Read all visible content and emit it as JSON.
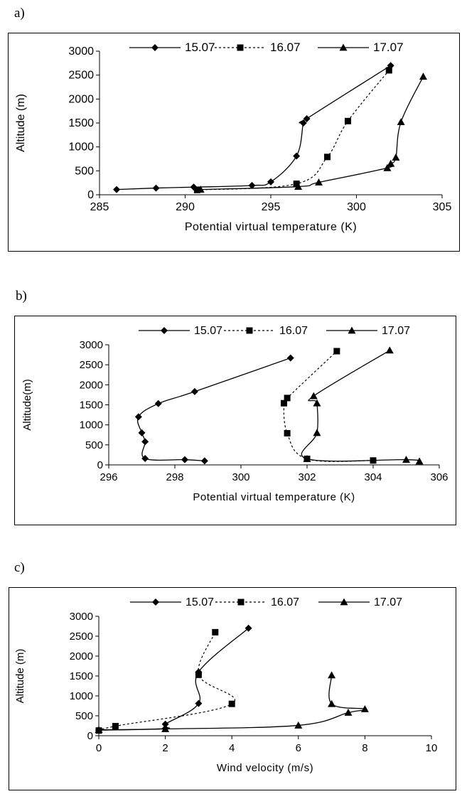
{
  "panels": [
    {
      "label": "a)"
    },
    {
      "label": "b)"
    },
    {
      "label": "c)"
    }
  ],
  "chart_data": [
    {
      "type": "line",
      "xlabel": "Potential virtual temperature (K)",
      "ylabel": "Altitude (m)",
      "xlim": [
        285,
        305
      ],
      "ylim": [
        0,
        3000
      ],
      "xticks": [
        285,
        290,
        295,
        300,
        305
      ],
      "yticks": [
        0,
        500,
        1000,
        1500,
        2000,
        2500,
        3000
      ],
      "legend": "top",
      "grid": false,
      "series": [
        {
          "name": "15.07",
          "marker": "diamond",
          "dash": "solid",
          "points": [
            [
              286,
              110
            ],
            [
              288.3,
              140
            ],
            [
              290.5,
              160
            ],
            [
              293.9,
              195
            ],
            [
              295,
              270
            ],
            [
              296.5,
              810
            ],
            [
              296.9,
              1500
            ],
            [
              297.1,
              1590
            ],
            [
              302,
              2700
            ]
          ]
        },
        {
          "name": "16.07",
          "marker": "square",
          "dash": "dotted",
          "points": [
            [
              290.7,
              100
            ],
            [
              296.5,
              230
            ],
            [
              298.3,
              790
            ],
            [
              299.5,
              1540
            ],
            [
              301.9,
              2600
            ]
          ]
        },
        {
          "name": "17.07",
          "marker": "triangle",
          "dash": "solid",
          "points": [
            [
              290.9,
              110
            ],
            [
              296.6,
              170
            ],
            [
              297.8,
              260
            ],
            [
              301.8,
              560
            ],
            [
              302,
              650
            ],
            [
              302.3,
              780
            ],
            [
              302.6,
              1520
            ],
            [
              303.9,
              2470
            ]
          ]
        }
      ]
    },
    {
      "type": "line",
      "xlabel": "Potential virtual temperature (K)",
      "ylabel": "Altitude(m)",
      "xlim": [
        296,
        306
      ],
      "ylim": [
        0,
        3000
      ],
      "xticks": [
        296,
        298,
        300,
        302,
        304,
        306
      ],
      "yticks": [
        0,
        500,
        1000,
        1500,
        2000,
        2500,
        3000
      ],
      "legend": "top",
      "grid": false,
      "series": [
        {
          "name": "15.07",
          "marker": "diamond",
          "dash": "solid",
          "points": [
            [
              298.9,
              100
            ],
            [
              298.3,
              130
            ],
            [
              297.1,
              160
            ],
            [
              297.1,
              580
            ],
            [
              297,
              800
            ],
            [
              296.9,
              1200
            ],
            [
              297.5,
              1530
            ],
            [
              298.6,
              1830
            ],
            [
              301.5,
              2670
            ]
          ]
        },
        {
          "name": "16.07",
          "marker": "square",
          "dash": "dotted",
          "points": [
            [
              304,
              110
            ],
            [
              302,
              150
            ],
            [
              301.4,
              790
            ],
            [
              301.3,
              1540
            ],
            [
              301.4,
              1670
            ],
            [
              302.9,
              2840
            ]
          ]
        },
        {
          "name": "17.07",
          "marker": "triangle",
          "dash": "solid",
          "points": [
            [
              305.4,
              90
            ],
            [
              305,
              130
            ],
            [
              302,
              150
            ],
            [
              302.3,
              800
            ],
            [
              302.3,
              1540
            ],
            [
              302.2,
              1720
            ],
            [
              304.5,
              2860
            ]
          ]
        }
      ]
    },
    {
      "type": "line",
      "xlabel": "Wind velocity (m/s)",
      "ylabel": "Altitude (m)",
      "xlim": [
        0,
        10
      ],
      "ylim": [
        0,
        3000
      ],
      "xticks": [
        0,
        2,
        4,
        6,
        8,
        10
      ],
      "yticks": [
        0,
        500,
        1000,
        1500,
        2000,
        2500,
        3000
      ],
      "legend": "top",
      "grid": false,
      "series": [
        {
          "name": "15.07",
          "marker": "diamond",
          "dash": "solid",
          "points": [
            [
              0,
              140
            ],
            [
              2,
              180
            ],
            [
              2,
              290
            ],
            [
              3,
              810
            ],
            [
              3,
              1600
            ],
            [
              4.5,
              2700
            ]
          ]
        },
        {
          "name": "16.07",
          "marker": "square",
          "dash": "dotted",
          "points": [
            [
              0,
              130
            ],
            [
              0.5,
              240
            ],
            [
              4,
              800
            ],
            [
              3,
              1530
            ],
            [
              3.5,
              2600
            ]
          ]
        },
        {
          "name": "17.07",
          "marker": "triangle",
          "dash": "solid",
          "points": [
            [
              0,
              150
            ],
            [
              2,
              170
            ],
            [
              6,
              260
            ],
            [
              7.5,
              580
            ],
            [
              8,
              670
            ],
            [
              7,
              800
            ],
            [
              7,
              1520
            ]
          ]
        }
      ]
    }
  ]
}
